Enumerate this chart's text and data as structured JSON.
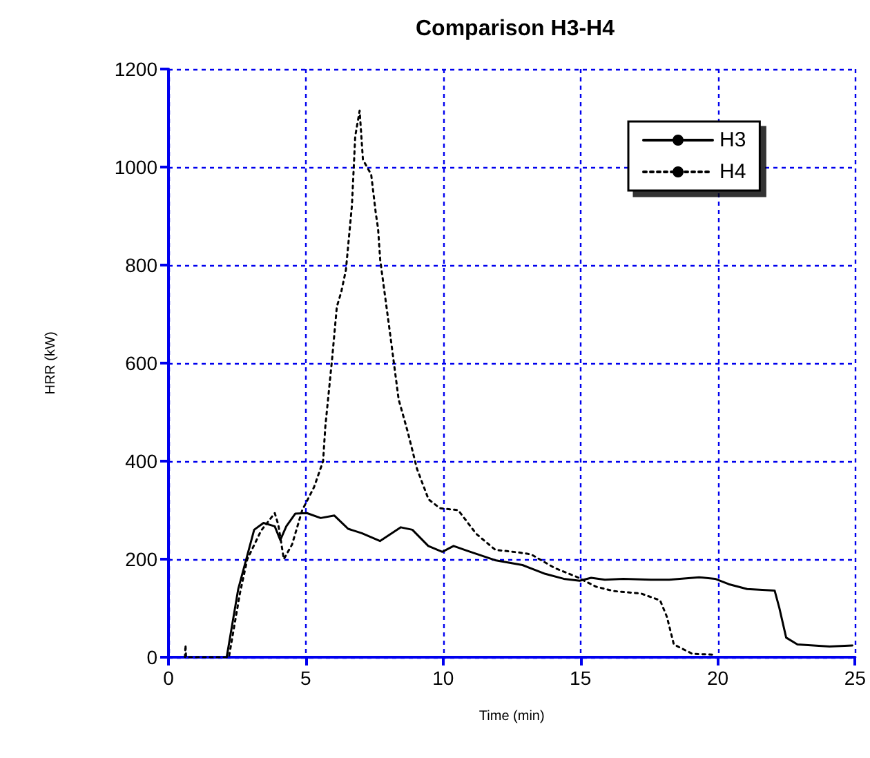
{
  "chart_data": {
    "type": "line",
    "title": "Comparison H3-H4",
    "xlabel": "Time (min)",
    "ylabel": "HRR (kW)",
    "xlim": [
      0,
      25
    ],
    "xticks": [
      0,
      5,
      10,
      15,
      20,
      25
    ],
    "ylim": [
      0,
      1200
    ],
    "yticks": [
      0,
      200,
      400,
      600,
      800,
      1000,
      1200
    ],
    "grid": true,
    "legend": "top right",
    "marker": "none",
    "series": [
      {
        "name": "H3",
        "color": "#000000",
        "line_style": "solid",
        "x": [
          2.12,
          2.54,
          3.12,
          3.46,
          3.87,
          4.07,
          4.29,
          4.62,
          5.04,
          5.54,
          6.04,
          6.54,
          7.04,
          7.7,
          8.46,
          8.88,
          9.46,
          9.97,
          10.38,
          10.88,
          11.89,
          12.89,
          13.72,
          14.39,
          14.97,
          15.39,
          15.89,
          16.56,
          17.56,
          18.23,
          19.32,
          19.9,
          20.4,
          21.07,
          22.07,
          22.24,
          22.49,
          22.9,
          24.07,
          24.9
        ],
        "values": [
          0,
          139,
          260,
          274,
          267,
          239,
          267,
          293,
          294,
          284,
          289,
          262,
          253,
          237,
          265,
          260,
          227,
          215,
          227,
          217,
          198,
          188,
          170,
          160,
          156,
          162,
          158,
          160,
          158,
          158,
          163,
          160,
          149,
          139,
          136,
          101,
          40,
          26,
          22,
          24
        ]
      },
      {
        "name": "H4",
        "color": "#000000",
        "line_style": "dotted",
        "x": [
          0.6,
          0.62,
          0.64,
          2.2,
          2.6,
          2.87,
          3.37,
          3.87,
          4.0,
          4.2,
          4.5,
          4.87,
          5.3,
          5.63,
          5.71,
          5.96,
          6.13,
          6.29,
          6.46,
          6.68,
          6.8,
          6.96,
          7.08,
          7.38,
          7.55,
          7.63,
          7.71,
          8.05,
          8.38,
          8.71,
          9.05,
          9.47,
          9.88,
          10.55,
          11.2,
          11.9,
          12.72,
          13.2,
          14.06,
          14.9,
          15.56,
          16.2,
          17.2,
          17.9,
          18.15,
          18.4,
          19.07,
          19.9
        ],
        "values": [
          0,
          25,
          0,
          0,
          130,
          200,
          258,
          294,
          270,
          200,
          230,
          300,
          347,
          400,
          470,
          610,
          715,
          745,
          790,
          922,
          1063,
          1115,
          1015,
          985,
          905,
          875,
          810,
          668,
          526,
          460,
          384,
          322,
          304,
          300,
          252,
          219,
          214,
          210,
          182,
          163,
          144,
          135,
          130,
          116,
          82,
          26,
          7,
          5
        ]
      }
    ]
  }
}
